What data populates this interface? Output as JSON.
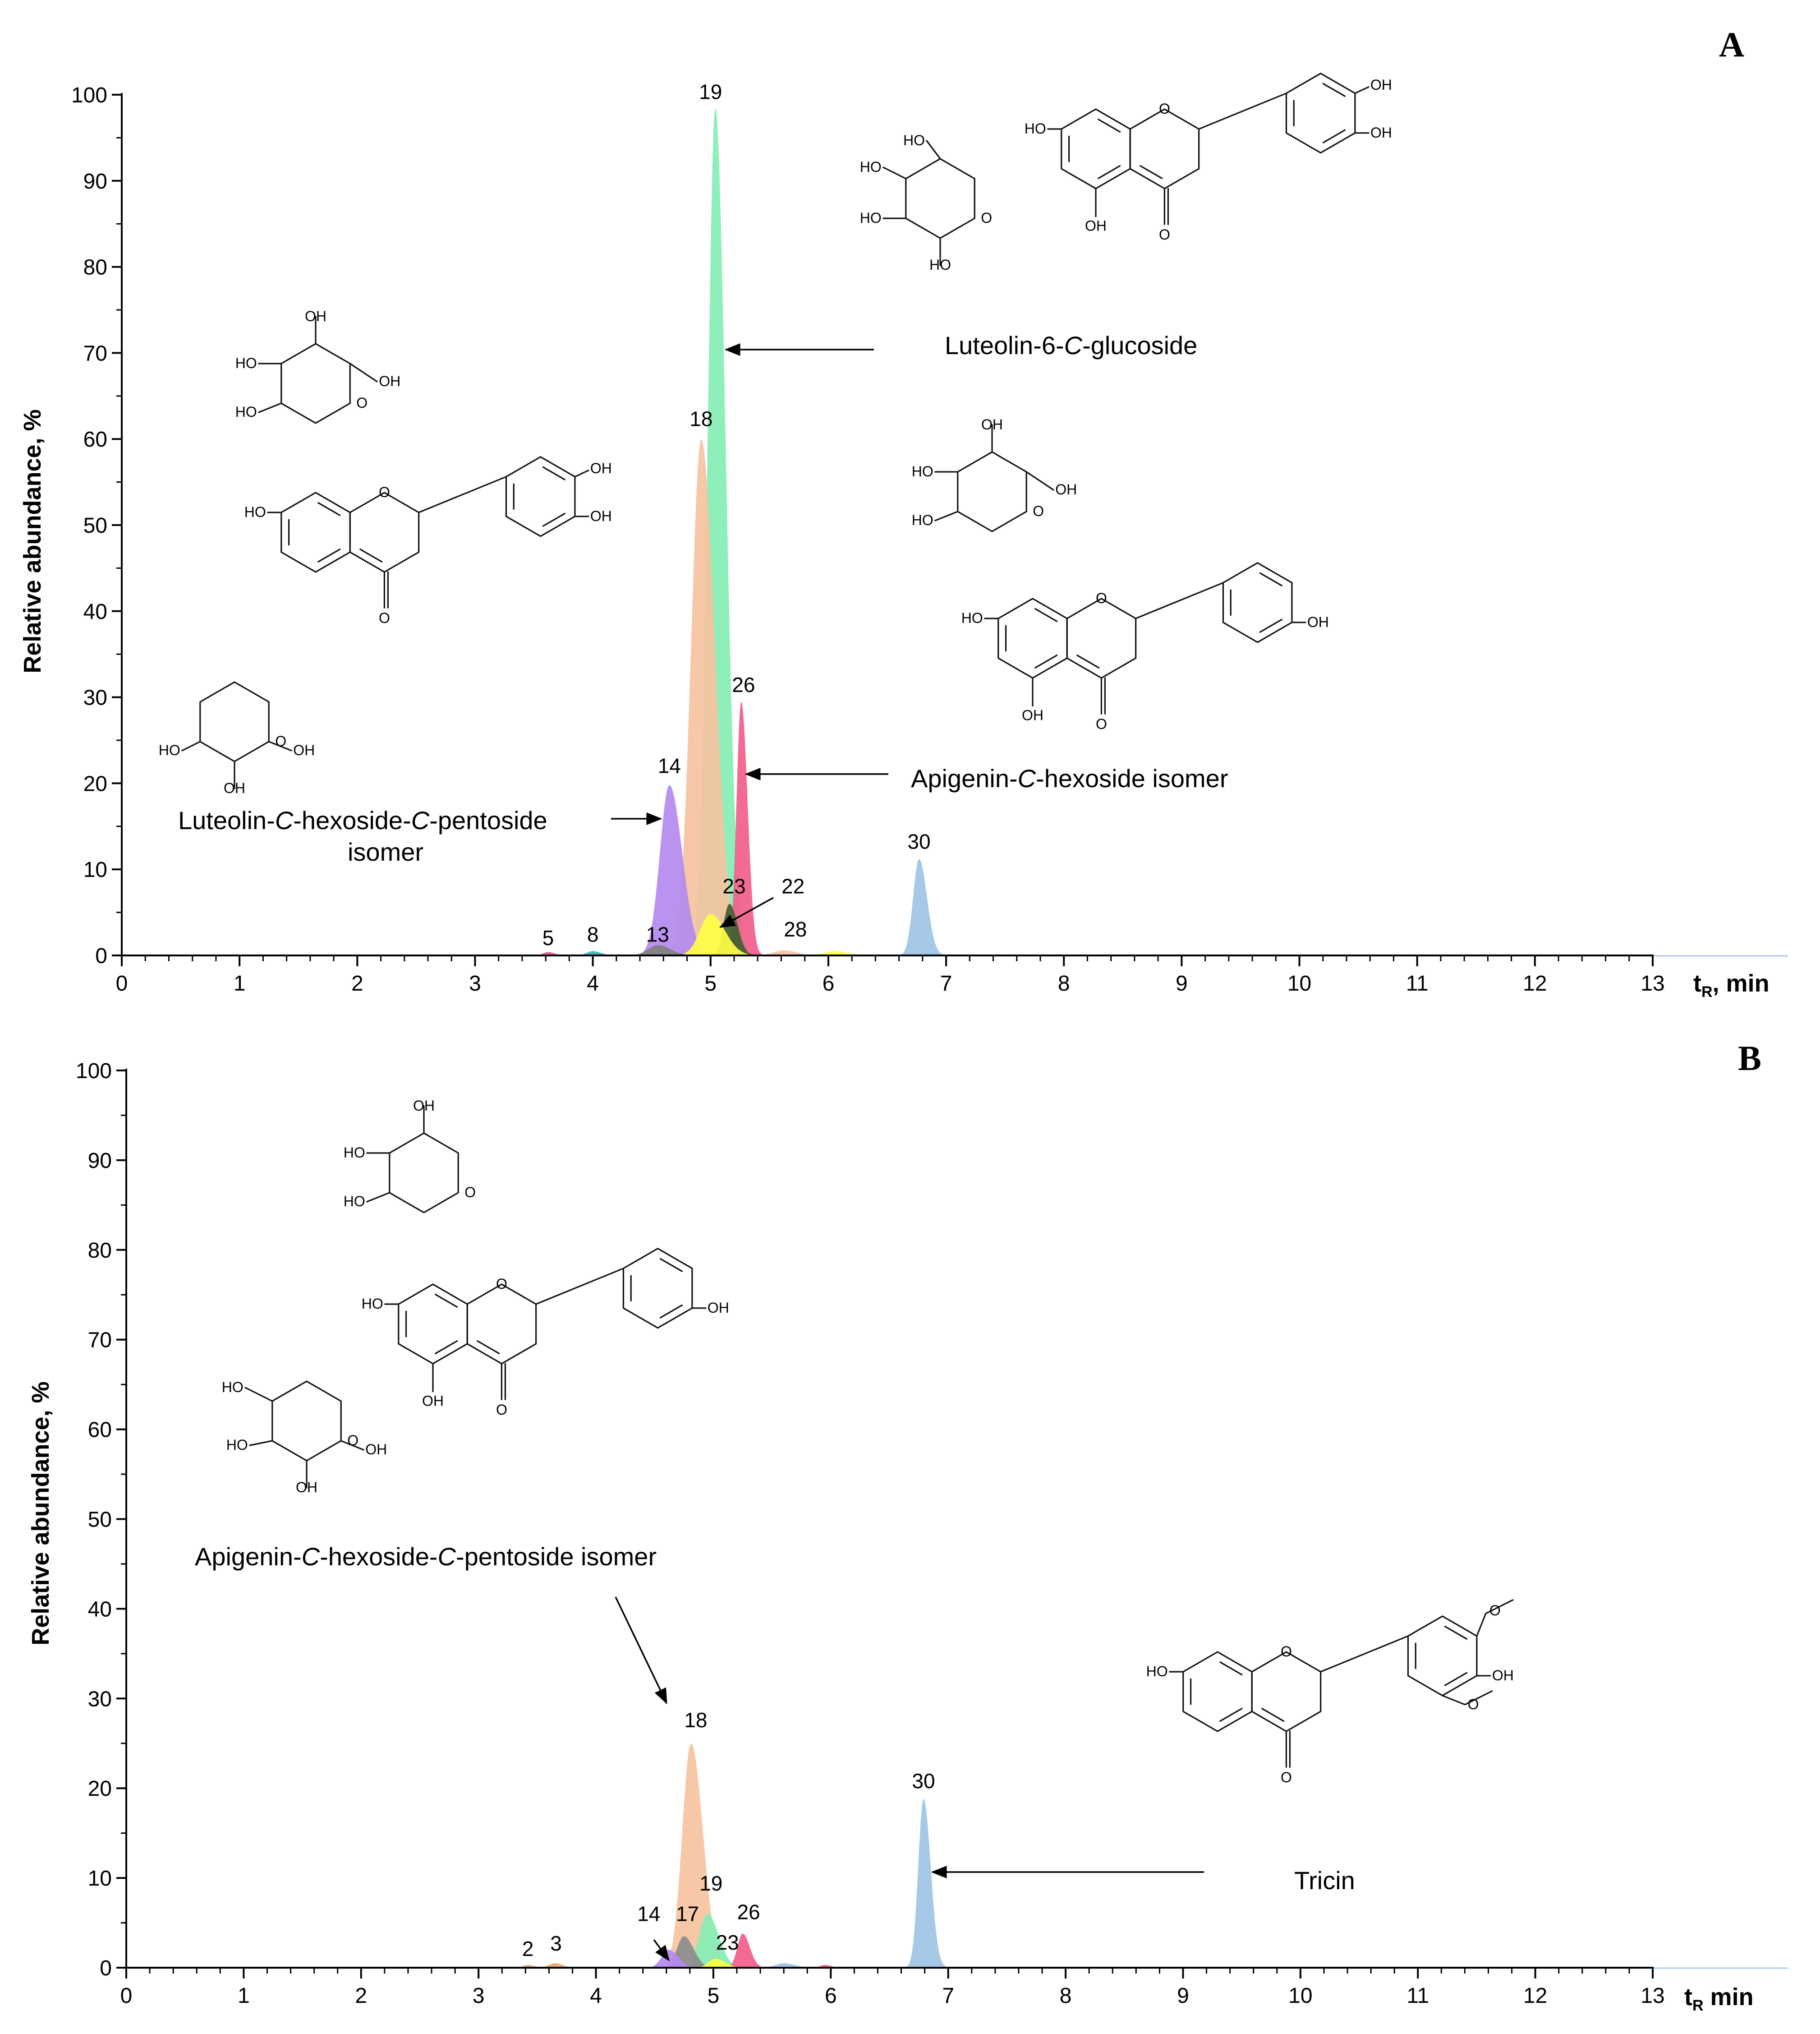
{
  "colors": {
    "c2": "#e8a868",
    "c3": "#e8a868",
    "c5": "#e8589a",
    "c8": "#3cb0b8",
    "c13": "#808080",
    "c14": "#b48af0",
    "c17": "#8c8c8c",
    "c18": "#f5c3a0",
    "c19": "#86eeb4",
    "c22": "#3f5f30",
    "c23": "#ffff44",
    "c26": "#f25e8c",
    "c28": "#f4c4a8",
    "c30": "#9fc4e6",
    "baseline": "#a8c8f0"
  },
  "chart_data": [
    {
      "type": "area",
      "panel": "A",
      "xlabel_main": "t",
      "xlabel_sub": "R",
      "xlabel_rest": ", min",
      "ylabel": "Relative abundance, %",
      "xlim": [
        0,
        13
      ],
      "ylim": [
        0,
        100
      ],
      "x_ticks": [
        "0",
        "1",
        "2",
        "3",
        "4",
        "5",
        "6",
        "7",
        "8",
        "9",
        "10",
        "11",
        "12",
        "13"
      ],
      "y_ticks": [
        "0",
        "10",
        "20",
        "30",
        "40",
        "50",
        "60",
        "70",
        "80",
        "90",
        "100"
      ],
      "peaks": [
        {
          "label": "5",
          "rt": 3.62,
          "height": 0.4,
          "width": 0.04,
          "color": "c5",
          "label_x": 3.62,
          "label_y": 1.2
        },
        {
          "label": "8",
          "rt": 4.0,
          "height": 0.5,
          "width": 0.05,
          "color": "c8",
          "label_x": 4.0,
          "label_y": 1.6
        },
        {
          "label": "13",
          "rt": 4.55,
          "height": 1.2,
          "width": 0.08,
          "color": "c13",
          "label_x": 4.55,
          "label_y": 1.6
        },
        {
          "label": "14",
          "rt": 4.65,
          "height": 19.8,
          "width": 0.08,
          "color": "c14",
          "label_x": 4.65,
          "label_y": 21.2
        },
        {
          "label": "18",
          "rt": 4.92,
          "height": 60.0,
          "width": 0.085,
          "color": "c18",
          "label_x": 4.92,
          "label_y": 61.5
        },
        {
          "label": "19",
          "rt": 5.04,
          "height": 98.5,
          "width": 0.065,
          "color": "c19",
          "label_x": 5.0,
          "label_y": 99.5
        },
        {
          "label": "23",
          "rt": 5.0,
          "height": 4.8,
          "width": 0.09,
          "color": "c23",
          "label_x": 5.2,
          "label_y": 7.2
        },
        {
          "label": "22",
          "rt": 5.16,
          "height": 6.0,
          "width": 0.05,
          "color": "c22",
          "label_x": 5.7,
          "label_y": 7.2
        },
        {
          "label": "26",
          "rt": 5.26,
          "height": 29.5,
          "width": 0.04,
          "color": "c26",
          "label_x": 5.28,
          "label_y": 30.6
        },
        {
          "label": "28",
          "rt": 5.62,
          "height": 0.6,
          "width": 0.08,
          "color": "c28",
          "label_x": 5.72,
          "label_y": 2.2
        },
        {
          "label": "",
          "rt": 6.05,
          "height": 0.5,
          "width": 0.08,
          "color": "c23",
          "label_x": 0,
          "label_y": 0
        },
        {
          "label": "30",
          "rt": 6.77,
          "height": 11.2,
          "width": 0.05,
          "color": "c30",
          "label_x": 6.77,
          "label_y": 12.4
        }
      ],
      "annotations": [
        {
          "name": "luteolin-6-c-glucoside",
          "parts": [
            [
              "Luteolin-6-",
              false
            ],
            [
              "C",
              true
            ],
            [
              "-glucoside",
              false
            ]
          ]
        },
        {
          "name": "apigenin-c-hexoside-isomer",
          "parts": [
            [
              "Apigenin-",
              false
            ],
            [
              "C",
              true
            ],
            [
              "-hexoside isomer",
              false
            ]
          ]
        },
        {
          "name": "luteolin-c-hexoside-c-pentoside-isomer",
          "parts": [
            [
              "Luteolin-",
              false
            ],
            [
              "C",
              true
            ],
            [
              "-hexoside-",
              false
            ],
            [
              "C",
              true
            ],
            [
              "-pentoside",
              false
            ]
          ],
          "line2": "isomer"
        }
      ]
    },
    {
      "type": "area",
      "panel": "B",
      "xlabel_main": "t",
      "xlabel_sub": "R",
      "xlabel_rest": " min",
      "ylabel": "Relative abundance, %",
      "xlim": [
        0,
        13
      ],
      "ylim": [
        0,
        100
      ],
      "x_ticks": [
        "0",
        "1",
        "2",
        "3",
        "4",
        "5",
        "6",
        "7",
        "8",
        "9",
        "10",
        "11",
        "12",
        "13"
      ],
      "y_ticks": [
        "0",
        "10",
        "20",
        "30",
        "40",
        "50",
        "60",
        "70",
        "80",
        "90",
        "100"
      ],
      "peaks": [
        {
          "label": "2",
          "rt": 3.42,
          "height": 0.3,
          "width": 0.04,
          "color": "c2",
          "label_x": 3.42,
          "label_y": 1.3
        },
        {
          "label": "3",
          "rt": 3.65,
          "height": 0.5,
          "width": 0.05,
          "color": "c3",
          "label_x": 3.66,
          "label_y": 1.9
        },
        {
          "label": "14",
          "rt": 4.62,
          "height": 2.0,
          "width": 0.06,
          "color": "c14",
          "label_x": 4.45,
          "label_y": 5.2
        },
        {
          "label": "17",
          "rt": 4.75,
          "height": 3.5,
          "width": 0.06,
          "color": "c17",
          "label_x": 4.78,
          "label_y": 5.2
        },
        {
          "label": "18",
          "rt": 4.81,
          "height": 25.0,
          "width": 0.075,
          "color": "c18",
          "label_x": 4.85,
          "label_y": 26.8
        },
        {
          "label": "19",
          "rt": 4.95,
          "height": 6.0,
          "width": 0.07,
          "color": "c19",
          "label_x": 4.98,
          "label_y": 8.6
        },
        {
          "label": "23",
          "rt": 5.02,
          "height": 1.0,
          "width": 0.06,
          "color": "c23",
          "label_x": 5.12,
          "label_y": 2.0
        },
        {
          "label": "26",
          "rt": 5.25,
          "height": 3.8,
          "width": 0.045,
          "color": "c26",
          "label_x": 5.3,
          "label_y": 5.4
        },
        {
          "label": "",
          "rt": 5.6,
          "height": 0.5,
          "width": 0.07,
          "color": "c30",
          "label_x": 0,
          "label_y": 0
        },
        {
          "label": "",
          "rt": 5.95,
          "height": 0.3,
          "width": 0.04,
          "color": "c5",
          "label_x": 0,
          "label_y": 0
        },
        {
          "label": "30",
          "rt": 6.79,
          "height": 18.8,
          "width": 0.045,
          "color": "c30",
          "label_x": 6.79,
          "label_y": 20.0
        }
      ],
      "annotations": [
        {
          "name": "apigenin-c-hexoside-c-pentoside-isomer",
          "parts": [
            [
              "Apigenin-",
              false
            ],
            [
              "C",
              true
            ],
            [
              "-hexoside-",
              false
            ],
            [
              "C",
              true
            ],
            [
              "-pentoside isomer",
              false
            ]
          ]
        },
        {
          "name": "tricin",
          "parts": [
            [
              "Tricin",
              false
            ]
          ]
        }
      ]
    }
  ],
  "structures": {
    "oh": "OH",
    "ho": "HO",
    "o": "O"
  }
}
